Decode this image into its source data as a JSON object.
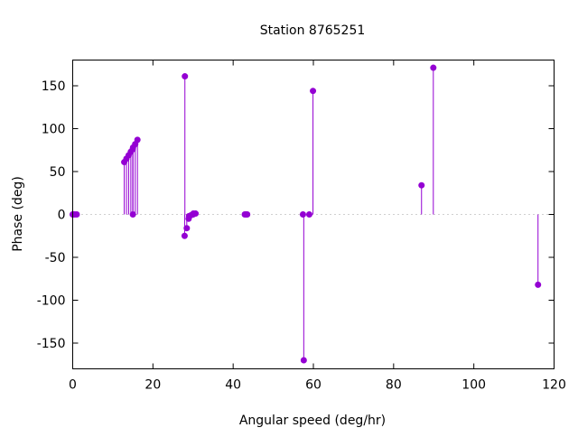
{
  "chart_data": {
    "type": "impulse-scatter",
    "title": "Station 8765251",
    "xlabel": "Angular speed (deg/hr)",
    "ylabel": "Phase (deg)",
    "xlim": [
      0,
      120
    ],
    "ylim": [
      -180,
      180
    ],
    "xticks": [
      0,
      20,
      40,
      60,
      80,
      100,
      120
    ],
    "yticks": [
      -150,
      -100,
      -50,
      0,
      50,
      100,
      150
    ],
    "zero_line": true,
    "color": "#9400d3",
    "points": [
      {
        "x": 0.0,
        "y": 0
      },
      {
        "x": 0.04,
        "y": 0
      },
      {
        "x": 0.08,
        "y": 0
      },
      {
        "x": 0.5,
        "y": 0
      },
      {
        "x": 1.0,
        "y": 0
      },
      {
        "x": 12.85,
        "y": 61
      },
      {
        "x": 13.4,
        "y": 65
      },
      {
        "x": 13.94,
        "y": 69
      },
      {
        "x": 14.49,
        "y": 73
      },
      {
        "x": 14.96,
        "y": 76
      },
      {
        "x": 15.0,
        "y": 0
      },
      {
        "x": 15.04,
        "y": 78
      },
      {
        "x": 15.59,
        "y": 82
      },
      {
        "x": 16.14,
        "y": 87
      },
      {
        "x": 27.9,
        "y": -25
      },
      {
        "x": 27.97,
        "y": 161
      },
      {
        "x": 28.44,
        "y": -16
      },
      {
        "x": 28.9,
        "y": -5
      },
      {
        "x": 28.98,
        "y": -2
      },
      {
        "x": 29.46,
        "y": -1
      },
      {
        "x": 29.96,
        "y": 0
      },
      {
        "x": 30.0,
        "y": 0
      },
      {
        "x": 30.08,
        "y": 1
      },
      {
        "x": 30.63,
        "y": 1
      },
      {
        "x": 42.9,
        "y": 0
      },
      {
        "x": 43.2,
        "y": 0
      },
      {
        "x": 43.5,
        "y": 0
      },
      {
        "x": 57.4,
        "y": 0
      },
      {
        "x": 57.6,
        "y": -170
      },
      {
        "x": 58.98,
        "y": 0
      },
      {
        "x": 59.9,
        "y": 144
      },
      {
        "x": 86.96,
        "y": 34
      },
      {
        "x": 89.9,
        "y": 171
      },
      {
        "x": 116.0,
        "y": -82
      }
    ]
  }
}
